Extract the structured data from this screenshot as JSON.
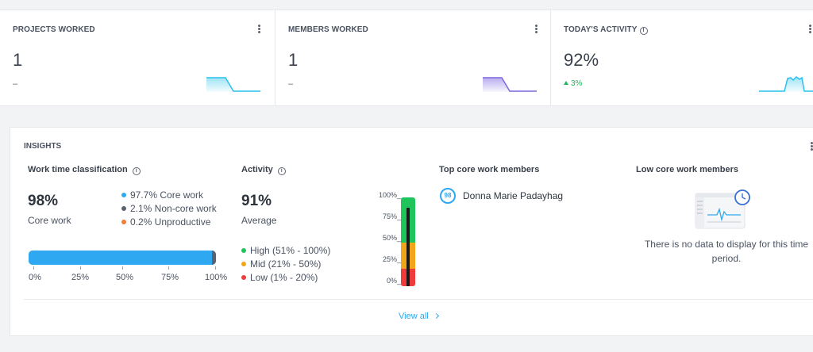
{
  "stats": [
    {
      "title": "PROJECTS WORKED",
      "value": "1",
      "sub": "–",
      "color": "#29c1ec"
    },
    {
      "title": "MEMBERS WORKED",
      "value": "1",
      "sub": "–",
      "color": "#7e67e0"
    },
    {
      "title": "TODAY'S ACTIVITY",
      "value": "92%",
      "sub": "3%",
      "color": "#29c1ec"
    }
  ],
  "insights": {
    "title": "INSIGHTS",
    "work_time": {
      "title": "Work time classification",
      "value": "98%",
      "label": "Core work",
      "legend": [
        {
          "text": "97.7% Core work",
          "color": "#2ea8f0",
          "pct": 97.7
        },
        {
          "text": "2.1% Non-core work",
          "color": "#5c6370",
          "pct": 2.1
        },
        {
          "text": "0.2% Unproductive",
          "color": "#f07c3c",
          "pct": 0.2
        }
      ],
      "ticks": [
        "0%",
        "25%",
        "50%",
        "75%",
        "100%"
      ]
    },
    "activity": {
      "title": "Activity",
      "value": "91%",
      "label": "Average",
      "level": 91,
      "legend": [
        {
          "text": "High (51% - 100%)",
          "color": "#1fc45a"
        },
        {
          "text": "Mid (21% - 50%)",
          "color": "#f2a51a"
        },
        {
          "text": "Low (1% - 20%)",
          "color": "#ef3b3b"
        }
      ],
      "ticks": [
        "100%_",
        "75%_",
        "50%_",
        "25%_",
        "0%_"
      ]
    },
    "top_members": {
      "title": "Top core work members",
      "members": [
        {
          "badge": "98",
          "name": "Donna Marie Padayhag"
        }
      ]
    },
    "low_members": {
      "title": "Low core work members",
      "empty_text": "There is no data to display for this time period."
    },
    "view_all": "View all"
  }
}
